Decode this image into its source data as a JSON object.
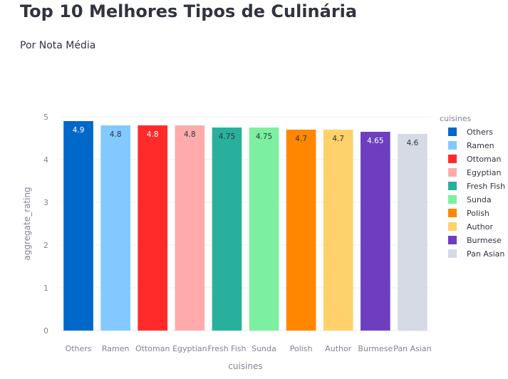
{
  "header": {
    "title": "Top 10 Melhores Tipos de Culinária",
    "subtitle": "Por Nota Média"
  },
  "chart_data": {
    "type": "bar",
    "title": "",
    "xlabel": "cuisines",
    "ylabel": "aggregate_rating",
    "ylim": [
      0,
      5
    ],
    "yticks": [
      0,
      1,
      2,
      3,
      4,
      5
    ],
    "grid": true,
    "legend_title": "cuisines",
    "legend_position": "right",
    "categories": [
      "Others",
      "Ramen",
      "Ottoman",
      "Egyptian",
      "Fresh Fish",
      "Sunda",
      "Polish",
      "Author",
      "Burmese",
      "Pan Asian"
    ],
    "values": [
      4.9,
      4.8,
      4.8,
      4.8,
      4.75,
      4.75,
      4.7,
      4.7,
      4.65,
      4.6
    ],
    "value_labels": [
      "4.9",
      "4.8",
      "4.8",
      "4.8",
      "4.75",
      "4.75",
      "4.7",
      "4.7",
      "4.65",
      "4.6"
    ],
    "colors": [
      "#0068c9",
      "#83c9ff",
      "#ff2b2b",
      "#ffabab",
      "#29b09d",
      "#7defa1",
      "#ff8700",
      "#ffd16a",
      "#6d3fc0",
      "#d5dae5"
    ],
    "label_colors": [
      "#ffffff",
      "#31333f",
      "#ffffff",
      "#31333f",
      "#31333f",
      "#31333f",
      "#31333f",
      "#31333f",
      "#ffffff",
      "#31333f"
    ]
  }
}
